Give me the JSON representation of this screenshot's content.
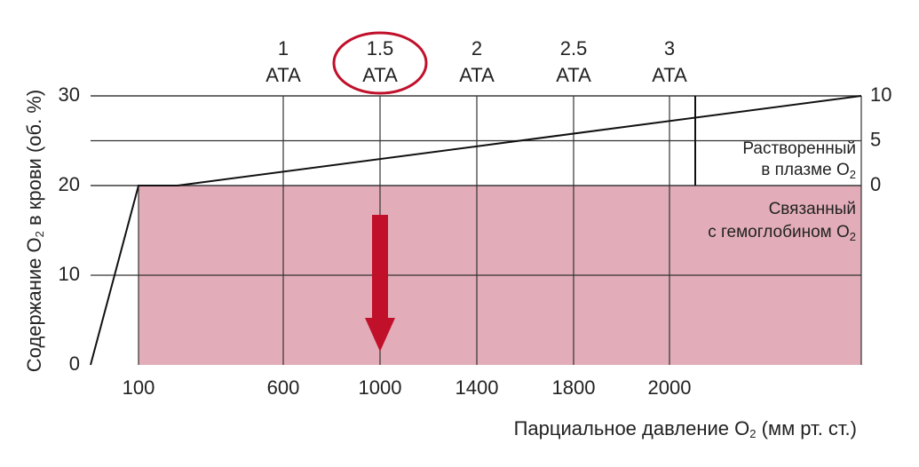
{
  "chart_data": {
    "type": "line",
    "y_label": [
      "Содержание O",
      "2",
      " в крови (об. %)"
    ],
    "x_label": [
      "Парциальное давление O",
      "2",
      " (мм рт. ст.)"
    ],
    "categories": [
      "100",
      "600",
      "1000",
      "1400",
      "1800",
      "2000"
    ],
    "ata_labels": [
      [
        "1",
        "ATA"
      ],
      [
        "1.5",
        "ATA"
      ],
      [
        "2",
        "ATA"
      ],
      [
        "2.5",
        "ATA"
      ],
      [
        "3",
        "ATA"
      ]
    ],
    "highlight": "1.5",
    "ylim": [
      0,
      30
    ],
    "yticks": [
      0,
      10,
      20,
      30
    ],
    "y2lim": [
      0,
      10
    ],
    "y2ticks": [
      0,
      5,
      10
    ],
    "curve": {
      "values": [
        0,
        20,
        20,
        30
      ],
      "color": "#111"
    },
    "dissolved_label": [
      "Растворенный",
      "в плазме O",
      "2"
    ],
    "bound_label": [
      "Связанный",
      "с гемоглобином O",
      "2"
    ],
    "bound_color": "#e2adb8",
    "arrow_color": "#c0102a"
  }
}
